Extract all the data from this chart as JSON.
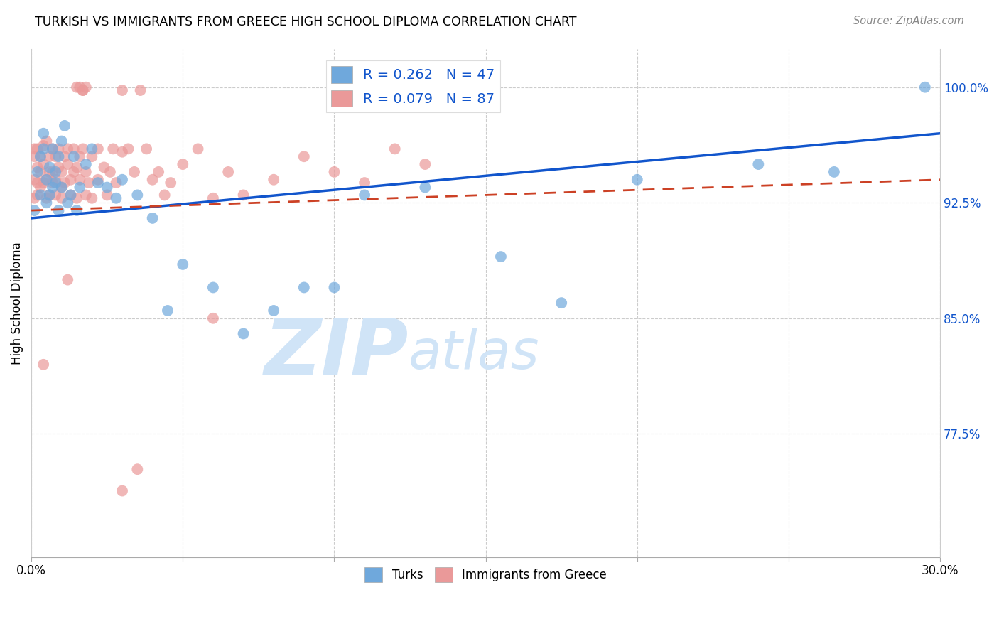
{
  "title": "TURKISH VS IMMIGRANTS FROM GREECE HIGH SCHOOL DIPLOMA CORRELATION CHART",
  "source": "Source: ZipAtlas.com",
  "ylabel": "High School Diploma",
  "ytick_labels": [
    "100.0%",
    "92.5%",
    "85.0%",
    "77.5%"
  ],
  "ytick_values": [
    1.0,
    0.925,
    0.85,
    0.775
  ],
  "xlim": [
    0.0,
    0.3
  ],
  "ylim": [
    0.695,
    1.025
  ],
  "legend_blue_r": "R = 0.262",
  "legend_blue_n": "N = 47",
  "legend_pink_r": "R = 0.079",
  "legend_pink_n": "N = 87",
  "blue_color": "#6fa8dc",
  "pink_color": "#ea9999",
  "blue_line_color": "#1155cc",
  "pink_line_color": "#cc4125",
  "grid_color": "#cccccc",
  "watermark_zip": "ZIP",
  "watermark_atlas": "atlas",
  "watermark_color": "#d0e4f7",
  "blue_scatter_x": [
    0.001,
    0.002,
    0.003,
    0.003,
    0.004,
    0.004,
    0.005,
    0.005,
    0.006,
    0.006,
    0.007,
    0.007,
    0.008,
    0.008,
    0.009,
    0.009,
    0.01,
    0.01,
    0.011,
    0.012,
    0.013,
    0.014,
    0.015,
    0.016,
    0.018,
    0.02,
    0.022,
    0.025,
    0.028,
    0.03,
    0.035,
    0.04,
    0.045,
    0.05,
    0.06,
    0.07,
    0.08,
    0.09,
    0.1,
    0.11,
    0.13,
    0.155,
    0.175,
    0.2,
    0.24,
    0.265,
    0.295
  ],
  "blue_scatter_y": [
    0.92,
    0.945,
    0.955,
    0.93,
    0.96,
    0.97,
    0.925,
    0.94,
    0.93,
    0.948,
    0.935,
    0.96,
    0.945,
    0.938,
    0.955,
    0.92,
    0.935,
    0.965,
    0.975,
    0.925,
    0.93,
    0.955,
    0.92,
    0.935,
    0.95,
    0.96,
    0.938,
    0.935,
    0.928,
    0.94,
    0.93,
    0.915,
    0.855,
    0.885,
    0.87,
    0.84,
    0.855,
    0.87,
    0.87,
    0.93,
    0.935,
    0.89,
    0.86,
    0.94,
    0.95,
    0.945,
    1.0
  ],
  "pink_scatter_x": [
    0.001,
    0.001,
    0.001,
    0.001,
    0.002,
    0.002,
    0.002,
    0.002,
    0.003,
    0.003,
    0.003,
    0.004,
    0.004,
    0.004,
    0.005,
    0.005,
    0.005,
    0.006,
    0.006,
    0.006,
    0.007,
    0.007,
    0.007,
    0.008,
    0.008,
    0.008,
    0.009,
    0.009,
    0.01,
    0.01,
    0.01,
    0.011,
    0.011,
    0.012,
    0.012,
    0.013,
    0.013,
    0.014,
    0.014,
    0.015,
    0.015,
    0.016,
    0.016,
    0.017,
    0.018,
    0.018,
    0.019,
    0.02,
    0.02,
    0.022,
    0.022,
    0.024,
    0.025,
    0.026,
    0.027,
    0.028,
    0.03,
    0.03,
    0.032,
    0.034,
    0.036,
    0.038,
    0.04,
    0.042,
    0.044,
    0.046,
    0.05,
    0.055,
    0.06,
    0.065,
    0.07,
    0.08,
    0.09,
    0.1,
    0.11,
    0.12,
    0.13,
    0.015,
    0.017,
    0.016,
    0.017,
    0.018,
    0.004,
    0.06,
    0.012,
    0.03,
    0.035
  ],
  "pink_scatter_y": [
    0.955,
    0.94,
    0.928,
    0.96,
    0.948,
    0.96,
    0.938,
    0.93,
    0.955,
    0.945,
    0.935,
    0.962,
    0.938,
    0.95,
    0.965,
    0.94,
    0.928,
    0.955,
    0.945,
    0.93,
    0.96,
    0.945,
    0.938,
    0.955,
    0.94,
    0.93,
    0.948,
    0.96,
    0.945,
    0.935,
    0.928,
    0.955,
    0.938,
    0.95,
    0.96,
    0.94,
    0.93,
    0.945,
    0.96,
    0.928,
    0.948,
    0.955,
    0.94,
    0.96,
    0.93,
    0.945,
    0.938,
    0.955,
    0.928,
    0.96,
    0.94,
    0.948,
    0.93,
    0.945,
    0.96,
    0.938,
    0.998,
    0.958,
    0.96,
    0.945,
    0.998,
    0.96,
    0.94,
    0.945,
    0.93,
    0.938,
    0.95,
    0.96,
    0.928,
    0.945,
    0.93,
    0.94,
    0.955,
    0.945,
    0.938,
    0.96,
    0.95,
    1.0,
    0.998,
    1.0,
    0.998,
    1.0,
    0.82,
    0.85,
    0.875,
    0.738,
    0.752
  ],
  "blue_line_x0": 0.0,
  "blue_line_y0": 0.915,
  "blue_line_x1": 0.3,
  "blue_line_y1": 0.97,
  "pink_line_x0": 0.0,
  "pink_line_y0": 0.92,
  "pink_line_x1": 0.3,
  "pink_line_y1": 0.94
}
